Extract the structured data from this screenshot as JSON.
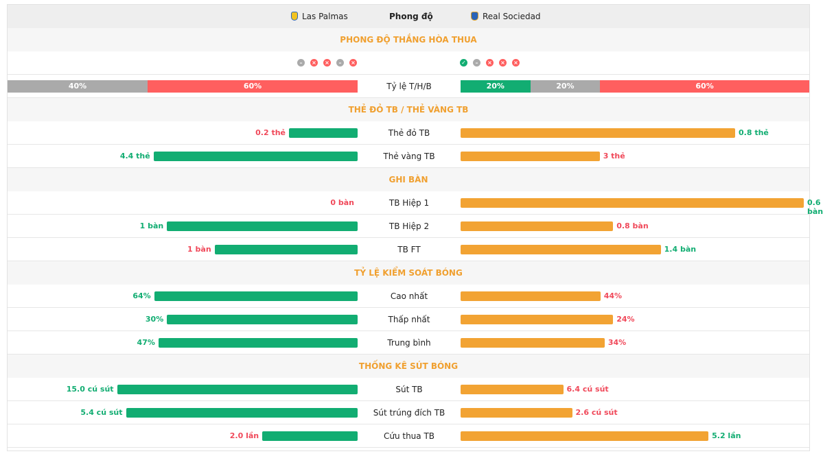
{
  "header": {
    "home": "Las Palmas",
    "title": "Phong độ",
    "away": "Real Sociedad"
  },
  "sections": [
    {
      "title": "PHONG ĐỘ THẮNG HÒA THUA",
      "ratio": {
        "label": "Tỷ lệ T/H/B",
        "home": [
          {
            "value": 40,
            "label": "40%",
            "color": "#aaaaaa"
          },
          {
            "value": 60,
            "label": "60%",
            "color": "#ff5f5f"
          }
        ],
        "away": [
          {
            "value": 20,
            "label": "20%",
            "color": "#12ad72"
          },
          {
            "value": 20,
            "label": "20%",
            "color": "#aaaaaa"
          },
          {
            "value": 60,
            "label": "60%",
            "color": "#ff5f5f"
          }
        ]
      }
    },
    {
      "title": "THẺ ĐỎ TB / THẺ VÀNG TB",
      "rows": [
        {
          "label": "Thẻ đỏ TB",
          "home": 0.2,
          "home_label": "0.2 thẻ",
          "away": 0.8,
          "away_label": "0.8 thẻ"
        },
        {
          "label": "Thẻ vàng TB",
          "home": 4.4,
          "home_label": "4.4 thẻ",
          "away": 3,
          "away_label": "3 thẻ"
        }
      ]
    },
    {
      "title": "GHI BÀN",
      "rows": [
        {
          "label": "TB Hiệp 1",
          "home": 0,
          "home_label": "0 bàn",
          "away": 0.6,
          "away_label": "0.6 bàn"
        },
        {
          "label": "TB Hiệp 2",
          "home": 1,
          "home_label": "1 bàn",
          "away": 0.8,
          "away_label": "0.8 bàn"
        },
        {
          "label": "TB FT",
          "home": 1,
          "home_label": "1 bàn",
          "away": 1.4,
          "away_label": "1.4 bàn"
        }
      ]
    },
    {
      "title": "TỶ LỆ KIỂM SOÁT BÓNG",
      "rows": [
        {
          "label": "Cao nhất",
          "home": 64,
          "home_label": "64%",
          "away": 44,
          "away_label": "44%"
        },
        {
          "label": "Thấp nhất",
          "home": 30,
          "home_label": "30%",
          "away": 24,
          "away_label": "24%"
        },
        {
          "label": "Trung bình",
          "home": 47,
          "home_label": "47%",
          "away": 34,
          "away_label": "34%"
        }
      ]
    },
    {
      "title": "THỐNG KÊ SÚT BÓNG",
      "rows": [
        {
          "label": "Sút TB",
          "home": 15.0,
          "home_label": "15.0 cú sút",
          "away": 6.4,
          "away_label": "6.4 cú sút"
        },
        {
          "label": "Sút trúng đích TB",
          "home": 5.4,
          "home_label": "5.4 cú sút",
          "away": 2.6,
          "away_label": "2.6 cú sút"
        },
        {
          "label": "Cứu thua TB",
          "home": 2.0,
          "home_label": "2.0 lần",
          "away": 5.2,
          "away_label": "5.2 lần"
        }
      ]
    }
  ]
}
